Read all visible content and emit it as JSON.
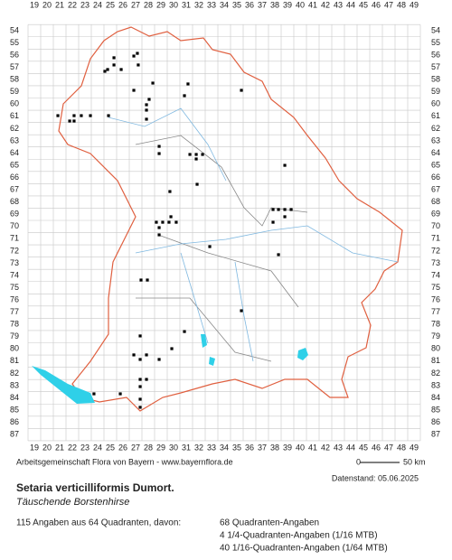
{
  "map": {
    "columns": [
      19,
      20,
      21,
      22,
      23,
      24,
      25,
      26,
      27,
      28,
      29,
      30,
      31,
      32,
      33,
      34,
      35,
      36,
      37,
      38,
      39,
      40,
      41,
      42,
      43,
      44,
      45,
      46,
      47,
      48,
      49
    ],
    "rows": [
      54,
      55,
      56,
      57,
      58,
      59,
      60,
      61,
      62,
      63,
      64,
      65,
      66,
      67,
      68,
      69,
      70,
      71,
      72,
      73,
      74,
      75,
      76,
      77,
      78,
      79,
      80,
      81,
      82,
      83,
      84,
      85,
      86,
      87
    ],
    "points": [
      {
        "x": 25.29,
        "y": 56.21
      },
      {
        "x": 27.14,
        "y": 55.85
      },
      {
        "x": 26.86,
        "y": 56.07
      },
      {
        "x": 24.79,
        "y": 57.17
      },
      {
        "x": 25.29,
        "y": 56.8
      },
      {
        "x": 27.21,
        "y": 56.8
      },
      {
        "x": 24.57,
        "y": 57.32
      },
      {
        "x": 25.86,
        "y": 57.17
      },
      {
        "x": 26.86,
        "y": 58.87
      },
      {
        "x": 28.36,
        "y": 58.28
      },
      {
        "x": 31.14,
        "y": 58.35
      },
      {
        "x": 30.86,
        "y": 59.31
      },
      {
        "x": 35.36,
        "y": 58.87
      },
      {
        "x": 28.07,
        "y": 59.61
      },
      {
        "x": 27.86,
        "y": 60.05
      },
      {
        "x": 27.86,
        "y": 60.49
      },
      {
        "x": 27.86,
        "y": 61.23
      },
      {
        "x": 20.86,
        "y": 60.94
      },
      {
        "x": 22.14,
        "y": 60.94
      },
      {
        "x": 22.71,
        "y": 60.94
      },
      {
        "x": 23.43,
        "y": 60.94
      },
      {
        "x": 24.86,
        "y": 60.94
      },
      {
        "x": 21.79,
        "y": 61.38
      },
      {
        "x": 22.14,
        "y": 61.38
      },
      {
        "x": 28.86,
        "y": 63.45
      },
      {
        "x": 28.86,
        "y": 64.04
      },
      {
        "x": 31.29,
        "y": 64.11
      },
      {
        "x": 31.79,
        "y": 64.11
      },
      {
        "x": 32.29,
        "y": 64.11
      },
      {
        "x": 31.79,
        "y": 64.48
      },
      {
        "x": 31.86,
        "y": 66.55
      },
      {
        "x": 38.79,
        "y": 65.0
      },
      {
        "x": 29.71,
        "y": 67.14
      },
      {
        "x": 29.79,
        "y": 69.2
      },
      {
        "x": 28.64,
        "y": 69.65
      },
      {
        "x": 29.14,
        "y": 69.65
      },
      {
        "x": 29.64,
        "y": 69.65
      },
      {
        "x": 30.21,
        "y": 69.65
      },
      {
        "x": 28.86,
        "y": 70.09
      },
      {
        "x": 28.86,
        "y": 70.68
      },
      {
        "x": 37.86,
        "y": 68.61
      },
      {
        "x": 38.29,
        "y": 68.61
      },
      {
        "x": 38.79,
        "y": 68.61
      },
      {
        "x": 39.29,
        "y": 68.61
      },
      {
        "x": 38.79,
        "y": 69.2
      },
      {
        "x": 37.86,
        "y": 69.65
      },
      {
        "x": 32.86,
        "y": 71.64
      },
      {
        "x": 38.29,
        "y": 72.3
      },
      {
        "x": 27.43,
        "y": 74.37
      },
      {
        "x": 27.93,
        "y": 74.37
      },
      {
        "x": 35.36,
        "y": 76.88
      },
      {
        "x": 30.86,
        "y": 78.58
      },
      {
        "x": 27.36,
        "y": 78.94
      },
      {
        "x": 29.86,
        "y": 79.98
      },
      {
        "x": 26.86,
        "y": 80.49
      },
      {
        "x": 27.36,
        "y": 80.86
      },
      {
        "x": 27.86,
        "y": 80.49
      },
      {
        "x": 28.86,
        "y": 80.86
      },
      {
        "x": 27.36,
        "y": 82.49
      },
      {
        "x": 27.36,
        "y": 83.08
      },
      {
        "x": 27.86,
        "y": 82.49
      },
      {
        "x": 23.71,
        "y": 83.67
      },
      {
        "x": 25.79,
        "y": 83.67
      },
      {
        "x": 27.36,
        "y": 84.11
      },
      {
        "x": 27.36,
        "y": 84.77
      }
    ]
  },
  "footer": {
    "credit": "Arbeitsgemeinschaft Flora von Bayern - www.bayernflora.de",
    "scale_start": "0",
    "scale_end": "50 km",
    "date": "Datenstand: 05.06.2025",
    "species": "Setaria verticilliformis Dumort.",
    "common_name": "Täuschende Borstenhirse",
    "summary": "115 Angaben aus 64 Quadranten, davon:",
    "detail_1": "68 Quadranten-Angaben",
    "detail_2": "4 1/4-Quadranten-Angaben (1/16 MTB)",
    "detail_3": "40 1/16-Quadranten-Angaben (1/64 MTB)"
  }
}
